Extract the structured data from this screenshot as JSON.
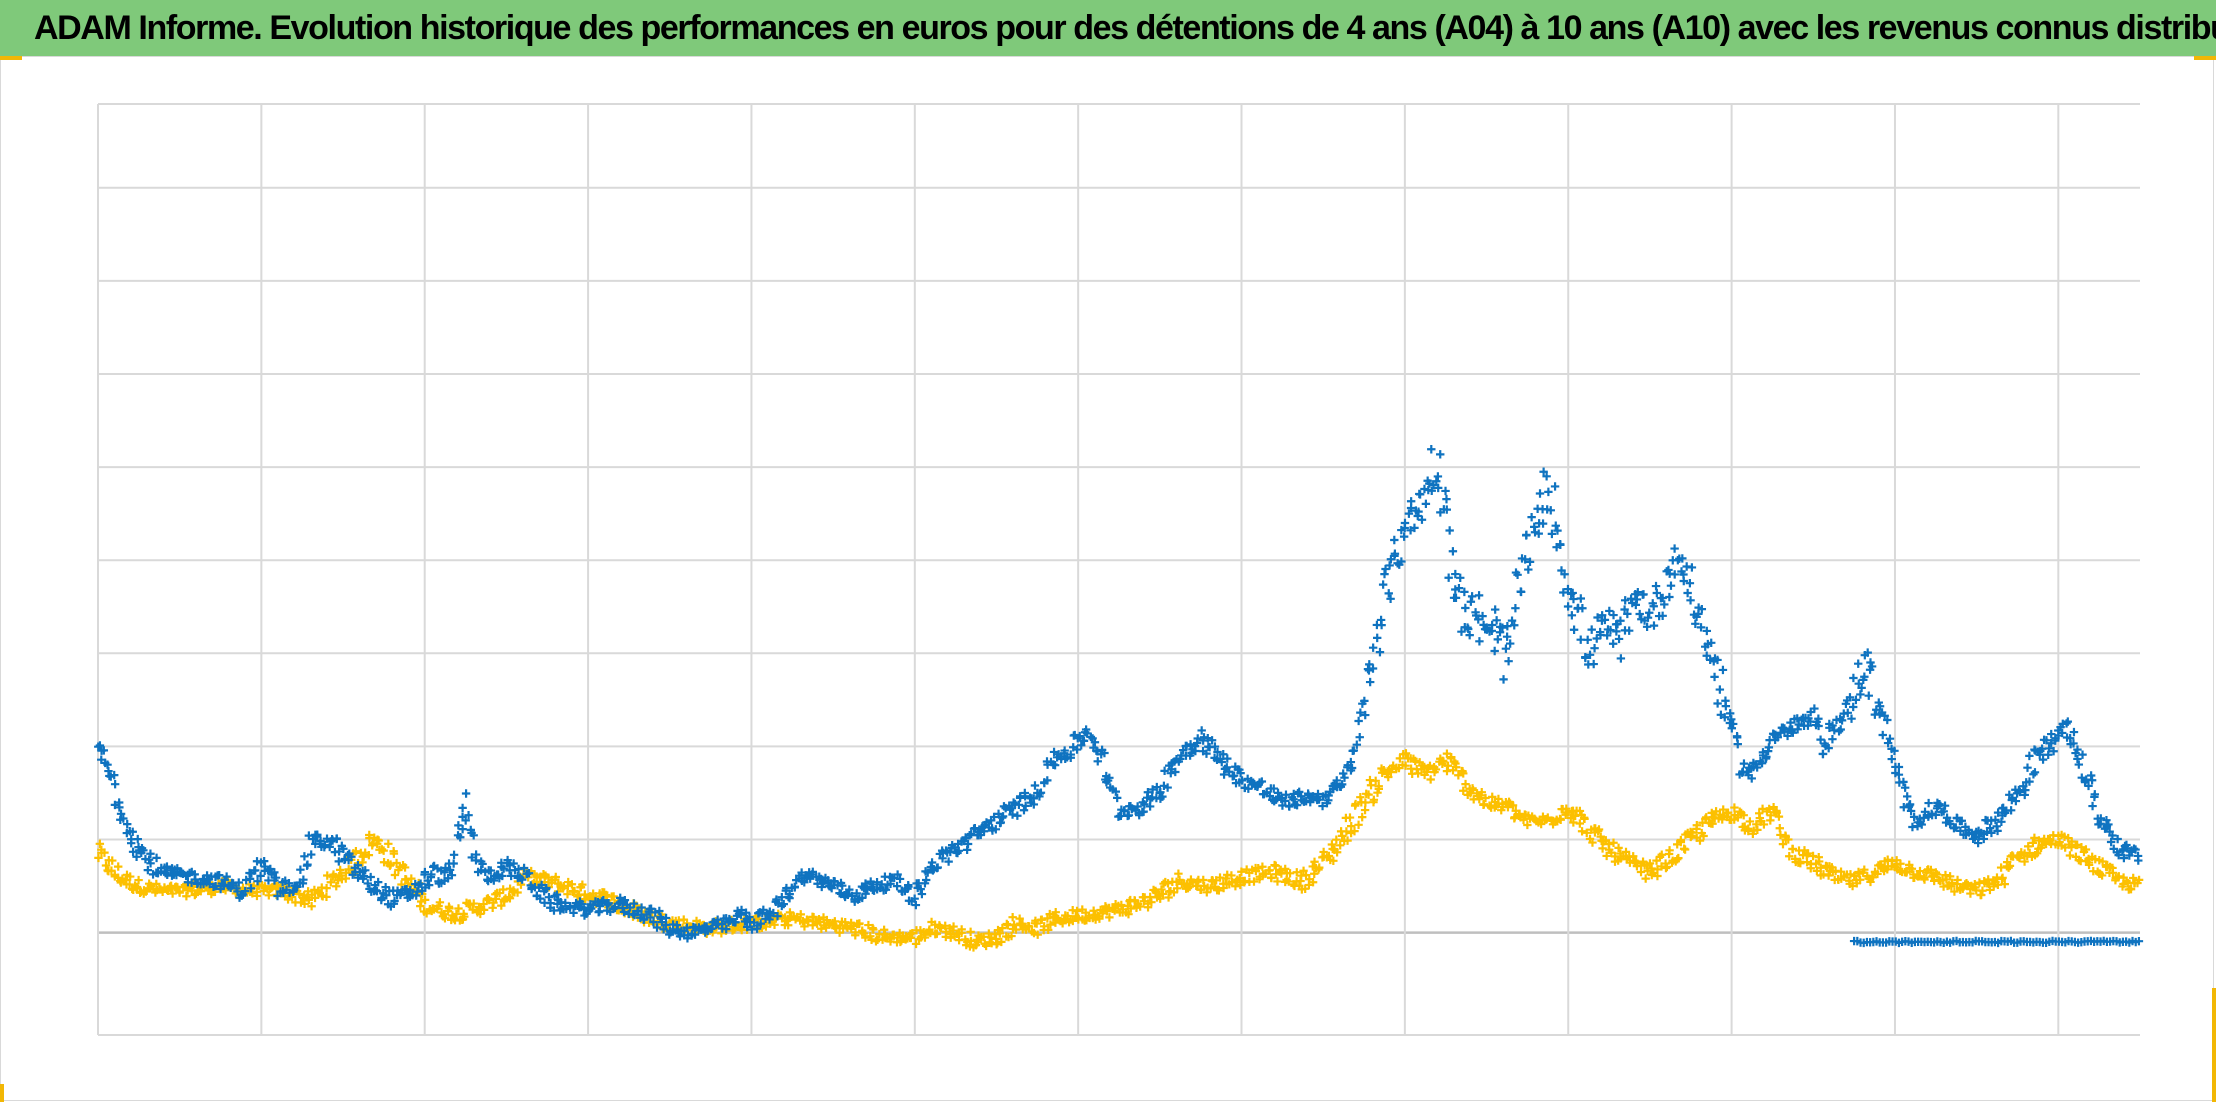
{
  "header": {
    "title": "ADAM Informe. Evolution historique des performances en euros pour des détentions de 4 ans (A04) à 10 ans (A10) avec les revenus connus distribués"
  },
  "colors": {
    "title_bar": "#7fc97a",
    "series_a": "#0f73c0",
    "series_b": "#fcc000",
    "gridline": "#d9d9d9",
    "zero_line": "#bfbfbf",
    "frame_accent": "#f2b705"
  },
  "chart_data": {
    "type": "scatter",
    "marker": "plus",
    "grid": true,
    "xlim": [
      0,
      1
    ],
    "ylim": [
      -1.1,
      8.9
    ],
    "y_gridlines": [
      -1.1,
      0,
      1,
      2,
      3,
      4,
      5,
      6,
      7,
      8,
      8.9
    ],
    "x_gridlines": 13,
    "series": [
      {
        "color": "#0f73c0",
        "points": [
          [
            0.0,
            2.0
          ],
          [
            0.006,
            1.7
          ],
          [
            0.012,
            1.3
          ],
          [
            0.02,
            0.9
          ],
          [
            0.03,
            0.65
          ],
          [
            0.045,
            0.6
          ],
          [
            0.06,
            0.55
          ],
          [
            0.07,
            0.45
          ],
          [
            0.08,
            0.7
          ],
          [
            0.09,
            0.45
          ],
          [
            0.1,
            0.6
          ],
          [
            0.105,
            1.0
          ],
          [
            0.115,
            0.95
          ],
          [
            0.125,
            0.7
          ],
          [
            0.135,
            0.5
          ],
          [
            0.145,
            0.35
          ],
          [
            0.155,
            0.45
          ],
          [
            0.165,
            0.65
          ],
          [
            0.17,
            0.55
          ],
          [
            0.175,
            0.8
          ],
          [
            0.18,
            1.35
          ],
          [
            0.185,
            0.8
          ],
          [
            0.19,
            0.6
          ],
          [
            0.2,
            0.7
          ],
          [
            0.21,
            0.6
          ],
          [
            0.215,
            0.45
          ],
          [
            0.225,
            0.3
          ],
          [
            0.24,
            0.25
          ],
          [
            0.255,
            0.3
          ],
          [
            0.27,
            0.2
          ],
          [
            0.28,
            0.05
          ],
          [
            0.29,
            0.0
          ],
          [
            0.3,
            0.05
          ],
          [
            0.31,
            0.1
          ],
          [
            0.315,
            0.2
          ],
          [
            0.32,
            0.1
          ],
          [
            0.33,
            0.2
          ],
          [
            0.335,
            0.35
          ],
          [
            0.34,
            0.5
          ],
          [
            0.345,
            0.6
          ],
          [
            0.35,
            0.6
          ],
          [
            0.36,
            0.5
          ],
          [
            0.37,
            0.4
          ],
          [
            0.38,
            0.5
          ],
          [
            0.39,
            0.55
          ],
          [
            0.4,
            0.4
          ],
          [
            0.405,
            0.6
          ],
          [
            0.41,
            0.75
          ],
          [
            0.42,
            0.9
          ],
          [
            0.43,
            1.05
          ],
          [
            0.44,
            1.2
          ],
          [
            0.45,
            1.35
          ],
          [
            0.46,
            1.5
          ],
          [
            0.465,
            1.8
          ],
          [
            0.475,
            1.95
          ],
          [
            0.485,
            2.15
          ],
          [
            0.49,
            1.95
          ],
          [
            0.495,
            1.6
          ],
          [
            0.5,
            1.3
          ],
          [
            0.51,
            1.35
          ],
          [
            0.52,
            1.5
          ],
          [
            0.525,
            1.75
          ],
          [
            0.53,
            1.9
          ],
          [
            0.54,
            2.1
          ],
          [
            0.55,
            1.85
          ],
          [
            0.56,
            1.65
          ],
          [
            0.57,
            1.55
          ],
          [
            0.58,
            1.4
          ],
          [
            0.59,
            1.45
          ],
          [
            0.6,
            1.45
          ],
          [
            0.61,
            1.6
          ],
          [
            0.615,
            1.9
          ],
          [
            0.62,
            2.4
          ],
          [
            0.625,
            3.1
          ],
          [
            0.63,
            3.6
          ],
          [
            0.635,
            4.0
          ],
          [
            0.64,
            4.4
          ],
          [
            0.645,
            4.5
          ],
          [
            0.65,
            4.7
          ],
          [
            0.655,
            5.1
          ],
          [
            0.66,
            4.6
          ],
          [
            0.665,
            3.7
          ],
          [
            0.67,
            3.3
          ],
          [
            0.675,
            3.5
          ],
          [
            0.68,
            3.1
          ],
          [
            0.685,
            3.3
          ],
          [
            0.69,
            2.8
          ],
          [
            0.695,
            3.6
          ],
          [
            0.7,
            4.1
          ],
          [
            0.705,
            4.4
          ],
          [
            0.71,
            4.8
          ],
          [
            0.715,
            4.3
          ],
          [
            0.72,
            3.7
          ],
          [
            0.725,
            3.4
          ],
          [
            0.73,
            3.0
          ],
          [
            0.735,
            3.2
          ],
          [
            0.74,
            3.3
          ],
          [
            0.745,
            3.1
          ],
          [
            0.75,
            3.4
          ],
          [
            0.755,
            3.6
          ],
          [
            0.76,
            3.4
          ],
          [
            0.765,
            3.6
          ],
          [
            0.77,
            3.9
          ],
          [
            0.775,
            4.0
          ],
          [
            0.78,
            3.7
          ],
          [
            0.785,
            3.3
          ],
          [
            0.79,
            3.0
          ],
          [
            0.795,
            2.6
          ],
          [
            0.8,
            2.2
          ],
          [
            0.805,
            1.8
          ],
          [
            0.81,
            1.7
          ],
          [
            0.815,
            1.9
          ],
          [
            0.82,
            2.1
          ],
          [
            0.83,
            2.2
          ],
          [
            0.84,
            2.3
          ],
          [
            0.845,
            2.0
          ],
          [
            0.85,
            2.2
          ],
          [
            0.855,
            2.3
          ],
          [
            0.86,
            2.6
          ],
          [
            0.865,
            2.9
          ],
          [
            0.87,
            2.6
          ],
          [
            0.875,
            2.2
          ],
          [
            0.88,
            1.8
          ],
          [
            0.885,
            1.4
          ],
          [
            0.89,
            1.2
          ],
          [
            0.9,
            1.35
          ],
          [
            0.905,
            1.3
          ],
          [
            0.91,
            1.15
          ],
          [
            0.92,
            1.05
          ],
          [
            0.93,
            1.2
          ],
          [
            0.94,
            1.5
          ],
          [
            0.95,
            1.9
          ],
          [
            0.96,
            2.1
          ],
          [
            0.965,
            2.2
          ],
          [
            0.97,
            1.9
          ],
          [
            0.975,
            1.6
          ],
          [
            0.98,
            1.25
          ],
          [
            0.985,
            1.1
          ],
          [
            0.99,
            0.9
          ],
          [
            1.0,
            0.8
          ]
        ]
      },
      {
        "color": "#fcc000",
        "points": [
          [
            0.0,
            0.85
          ],
          [
            0.01,
            0.6
          ],
          [
            0.02,
            0.5
          ],
          [
            0.03,
            0.45
          ],
          [
            0.045,
            0.45
          ],
          [
            0.06,
            0.5
          ],
          [
            0.075,
            0.45
          ],
          [
            0.09,
            0.45
          ],
          [
            0.105,
            0.35
          ],
          [
            0.115,
            0.55
          ],
          [
            0.125,
            0.75
          ],
          [
            0.135,
            1.0
          ],
          [
            0.14,
            0.9
          ],
          [
            0.15,
            0.6
          ],
          [
            0.16,
            0.3
          ],
          [
            0.175,
            0.2
          ],
          [
            0.19,
            0.3
          ],
          [
            0.2,
            0.4
          ],
          [
            0.21,
            0.6
          ],
          [
            0.22,
            0.55
          ],
          [
            0.235,
            0.45
          ],
          [
            0.25,
            0.35
          ],
          [
            0.265,
            0.2
          ],
          [
            0.28,
            0.1
          ],
          [
            0.3,
            0.05
          ],
          [
            0.32,
            0.1
          ],
          [
            0.34,
            0.15
          ],
          [
            0.355,
            0.1
          ],
          [
            0.37,
            0.05
          ],
          [
            0.385,
            -0.05
          ],
          [
            0.4,
            -0.05
          ],
          [
            0.41,
            0.05
          ],
          [
            0.42,
            0.0
          ],
          [
            0.43,
            -0.1
          ],
          [
            0.44,
            -0.05
          ],
          [
            0.45,
            0.1
          ],
          [
            0.46,
            0.05
          ],
          [
            0.47,
            0.15
          ],
          [
            0.485,
            0.2
          ],
          [
            0.5,
            0.25
          ],
          [
            0.515,
            0.35
          ],
          [
            0.53,
            0.55
          ],
          [
            0.545,
            0.5
          ],
          [
            0.56,
            0.6
          ],
          [
            0.575,
            0.65
          ],
          [
            0.59,
            0.55
          ],
          [
            0.6,
            0.75
          ],
          [
            0.61,
            1.05
          ],
          [
            0.62,
            1.4
          ],
          [
            0.63,
            1.7
          ],
          [
            0.64,
            1.85
          ],
          [
            0.65,
            1.7
          ],
          [
            0.66,
            1.85
          ],
          [
            0.67,
            1.6
          ],
          [
            0.68,
            1.4
          ],
          [
            0.69,
            1.35
          ],
          [
            0.7,
            1.2
          ],
          [
            0.71,
            1.2
          ],
          [
            0.72,
            1.35
          ],
          [
            0.73,
            1.1
          ],
          [
            0.74,
            0.9
          ],
          [
            0.75,
            0.75
          ],
          [
            0.76,
            0.65
          ],
          [
            0.77,
            0.8
          ],
          [
            0.78,
            1.0
          ],
          [
            0.79,
            1.2
          ],
          [
            0.8,
            1.3
          ],
          [
            0.81,
            1.15
          ],
          [
            0.82,
            1.3
          ],
          [
            0.825,
            1.05
          ],
          [
            0.83,
            0.85
          ],
          [
            0.84,
            0.75
          ],
          [
            0.85,
            0.6
          ],
          [
            0.86,
            0.55
          ],
          [
            0.87,
            0.65
          ],
          [
            0.88,
            0.75
          ],
          [
            0.89,
            0.65
          ],
          [
            0.9,
            0.6
          ],
          [
            0.91,
            0.5
          ],
          [
            0.92,
            0.45
          ],
          [
            0.93,
            0.55
          ],
          [
            0.94,
            0.8
          ],
          [
            0.95,
            0.95
          ],
          [
            0.96,
            1.0
          ],
          [
            0.97,
            0.85
          ],
          [
            0.98,
            0.7
          ],
          [
            0.99,
            0.55
          ],
          [
            1.0,
            0.5
          ]
        ]
      }
    ]
  }
}
